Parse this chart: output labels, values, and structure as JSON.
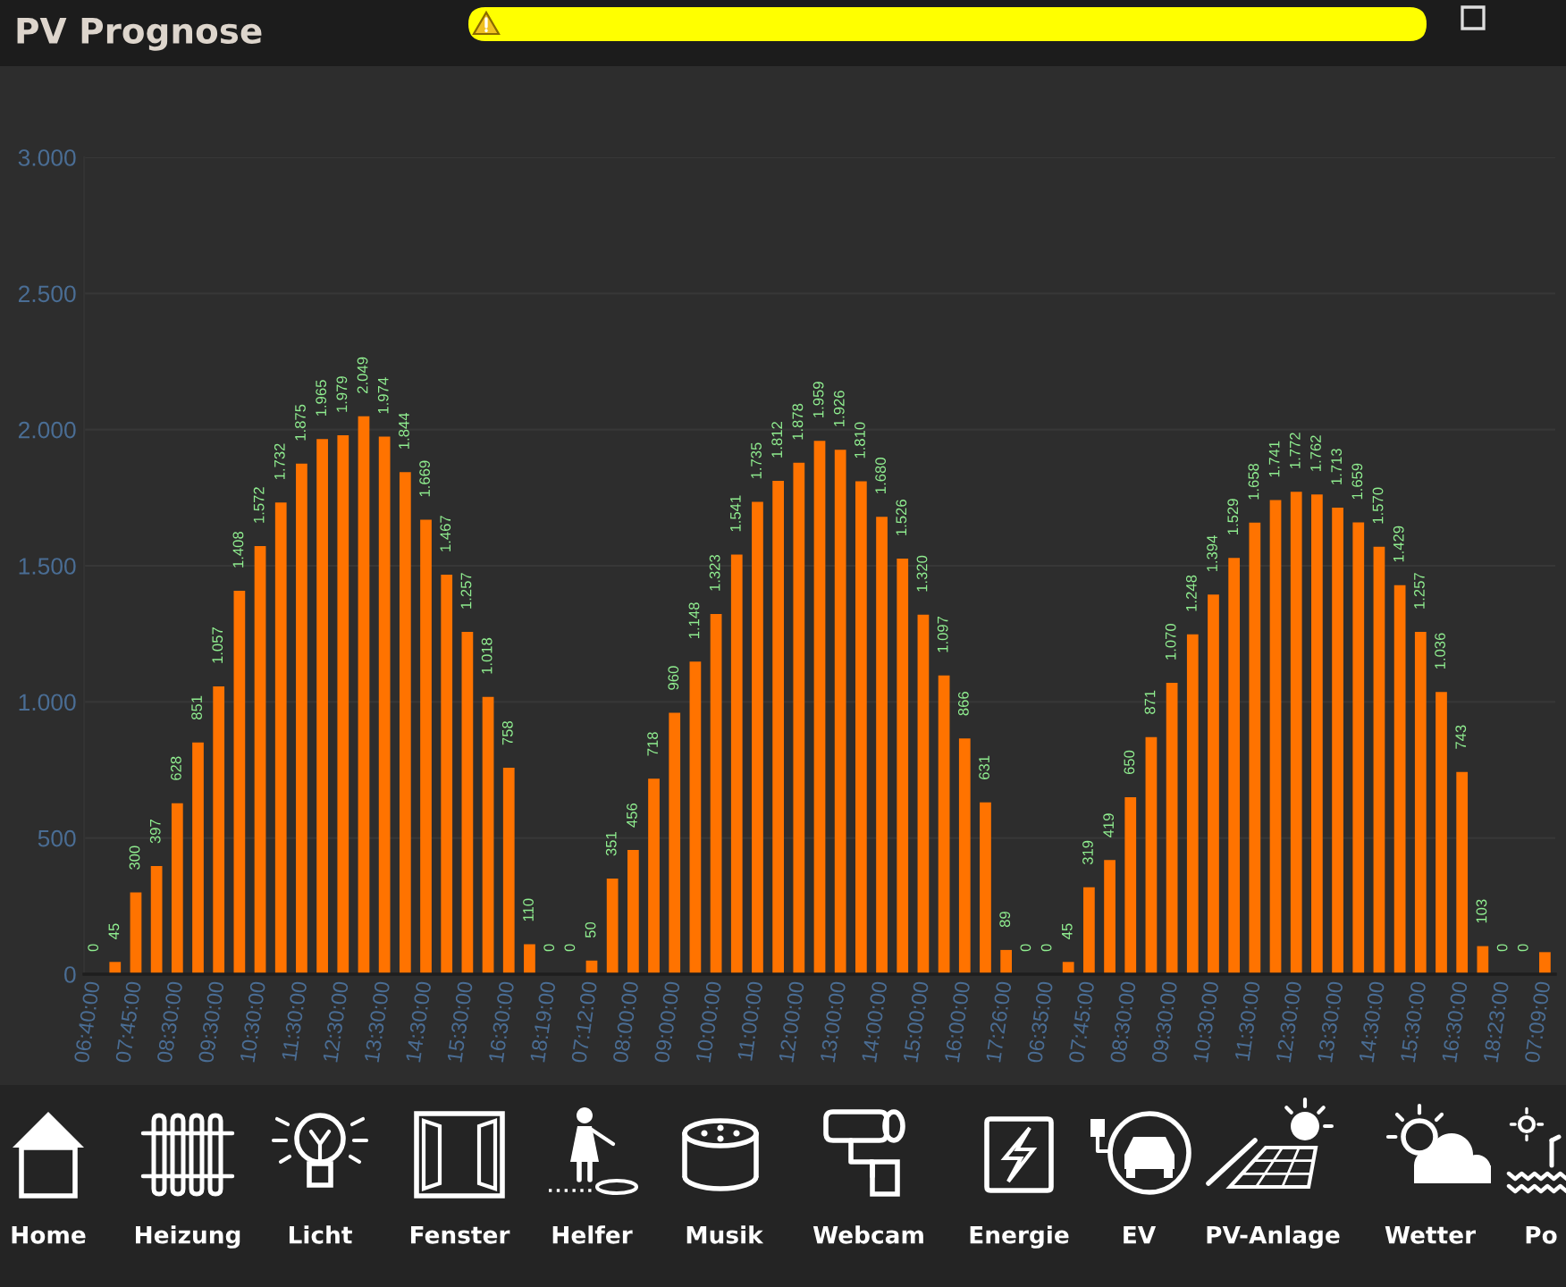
{
  "chart_data": {
    "type": "bar",
    "title": "PV Prognose",
    "categories": [
      "06:40:00",
      null,
      "07:45:00",
      null,
      "08:30:00",
      null,
      "09:30:00",
      null,
      "10:30:00",
      null,
      "11:30:00",
      null,
      "12:30:00",
      null,
      "13:30:00",
      null,
      "14:30:00",
      null,
      "15:30:00",
      null,
      "16:30:00",
      null,
      "18:19:00",
      null,
      "07:12:00",
      null,
      "08:00:00",
      null,
      "09:00:00",
      null,
      "10:00:00",
      null,
      "11:00:00",
      null,
      "12:00:00",
      null,
      "13:00:00",
      null,
      "14:00:00",
      null,
      "15:00:00",
      null,
      "16:00:00",
      null,
      "17:26:00",
      null,
      "06:35:00",
      null,
      "07:45:00",
      null,
      "08:30:00",
      null,
      "09:30:00",
      null,
      "10:30:00",
      null,
      "11:30:00",
      null,
      "12:30:00",
      null,
      "13:30:00",
      null,
      "14:30:00",
      null,
      "15:30:00",
      null,
      "16:30:00",
      null,
      "18:23:00",
      null,
      "07:09:00"
    ],
    "values": [
      0,
      45,
      300,
      397,
      628,
      851,
      1057,
      1408,
      1572,
      1732,
      1875,
      1965,
      1979,
      2049,
      1974,
      1844,
      1669,
      1467,
      1257,
      1018,
      758,
      110,
      0,
      0,
      50,
      351,
      456,
      718,
      960,
      1148,
      1323,
      1541,
      1735,
      1812,
      1878,
      1959,
      1926,
      1810,
      1680,
      1526,
      1320,
      1097,
      866,
      631,
      89,
      0,
      0,
      45,
      319,
      419,
      650,
      871,
      1070,
      1248,
      1394,
      1529,
      1658,
      1741,
      1772,
      1762,
      1713,
      1659,
      1570,
      1429,
      1257,
      1036,
      743,
      103,
      0,
      0,
      81
    ],
    "value_labels": [
      "0",
      "45",
      "300",
      "397",
      "628",
      "851",
      "1.057",
      "1.408",
      "1.572",
      "1.732",
      "1.875",
      "1.965",
      "1.979",
      "2.049",
      "1.974",
      "1.844",
      "1.669",
      "1.467",
      "1.257",
      "1.018",
      "758",
      "110",
      "0",
      "0",
      "50",
      "351",
      "456",
      "718",
      "960",
      "1.148",
      "1.323",
      "1.541",
      "1.735",
      "1.812",
      "1.878",
      "1.959",
      "1.926",
      "1.810",
      "1.680",
      "1.526",
      "1.320",
      "1.097",
      "866",
      "631",
      "89",
      "0",
      "0",
      "45",
      "319",
      "419",
      "650",
      "871",
      "1.070",
      "1.248",
      "1.394",
      "1.529",
      "1.658",
      "1.741",
      "1.772",
      "1.762",
      "1.713",
      "1.659",
      "1.570",
      "1.429",
      "1.257",
      "1.036",
      "743",
      "103",
      "0",
      "0",
      null
    ],
    "color": "#ff7300",
    "ylim": [
      0,
      3000
    ],
    "yticks": [
      0,
      500,
      {
        "value": 1000,
        "label": "1.000"
      },
      {
        "value": 1500,
        "label": "1.500"
      },
      {
        "value": 2000,
        "label": "2.000"
      },
      {
        "value": 2500,
        "label": "2.500"
      },
      {
        "value": 3000,
        "label": "3.000"
      }
    ],
    "grid": "y",
    "annotations": [
      "Home",
      "Heizung",
      "Licht",
      "Fenster",
      "Helfer",
      "Musik",
      "Webcam",
      "Energie",
      "EV",
      "PV-Anlage",
      "Wetter",
      "Po"
    ]
  }
}
